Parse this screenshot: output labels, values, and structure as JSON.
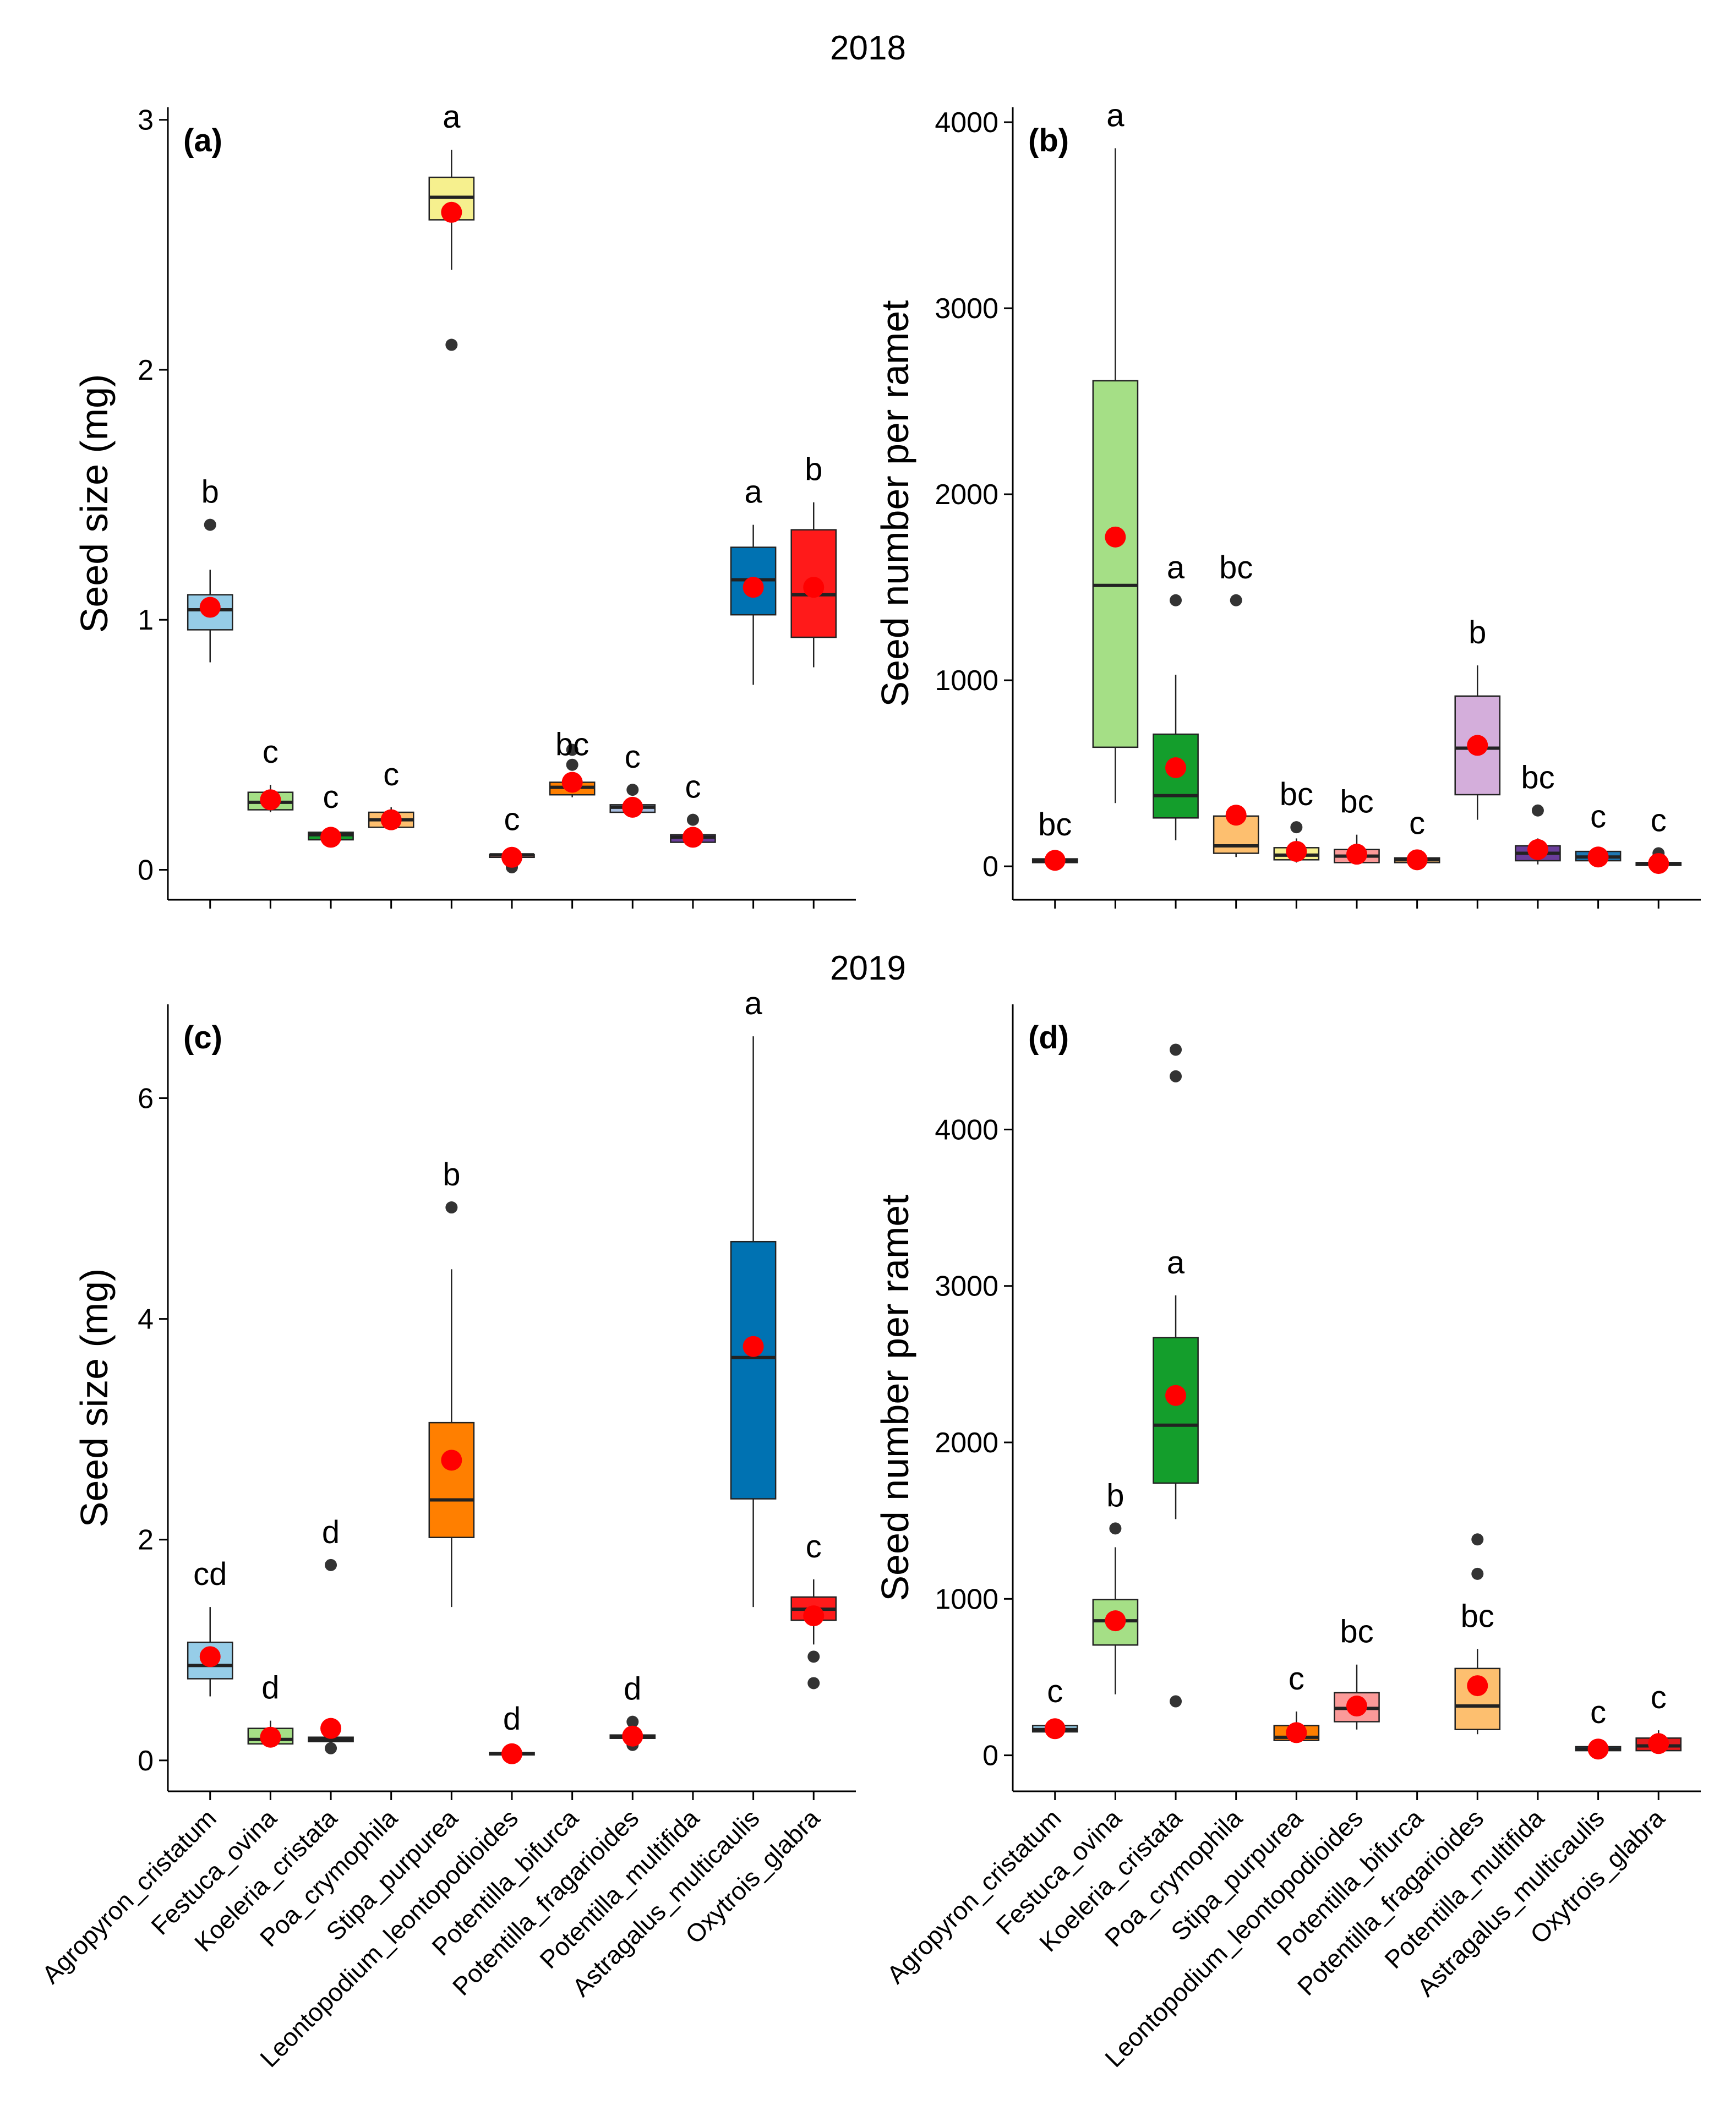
{
  "year_labels": [
    "2018",
    "2019"
  ],
  "species": [
    "Agropyron_cristatum",
    "Festuca_ovina",
    "Koeleria_cristata",
    "Poa_crymophila",
    "Stipa_purpurea",
    "Leontopodium_leontopodioides",
    "Potentilla_bifurca",
    "Potentilla_fragarioides",
    "Potentilla_multifida",
    "Astragalus_multicaulis",
    "Oxytrois_glabra"
  ],
  "colors": {
    "Agropyron_cristatum": "#96cde8",
    "Festuca_ovina": "#a5df86",
    "Koeleria_cristata": "#149e2c",
    "Poa_crymophila": "#fdbf6f",
    "Stipa_purpurea": "#ff7f00",
    "Leontopodium_leontopodioides": "#fb9a99",
    "Potentilla_bifurca": "#f6f08e",
    "Potentilla_fragarioides": "#fdbf6f",
    "Potentilla_multifida": "#6a3d9a",
    "Astragalus_multicaulis": "#1f78b4",
    "Oxytrois_glabra": "#e31a1c",
    "mean_point": "#ff0000",
    "outlier": "#333333"
  },
  "chart_data": [
    {
      "panel": "(a)",
      "year": "2018",
      "type": "box",
      "ylabel": "Seed size (mg)",
      "ylim": [
        -0.12,
        3.05
      ],
      "yticks": [
        0,
        1,
        2,
        3
      ],
      "show_x_labels": false,
      "groups": [
        {
          "species": "Agropyron_cristatum",
          "fill": "#96cde8",
          "min": 0.83,
          "q1": 0.96,
          "median": 1.04,
          "q3": 1.1,
          "max": 1.2,
          "mean": 1.05,
          "outliers": [
            1.38
          ],
          "letter": "b"
        },
        {
          "species": "Festuca_ovina",
          "fill": "#a5df86",
          "min": 0.23,
          "q1": 0.24,
          "median": 0.27,
          "q3": 0.31,
          "max": 0.34,
          "mean": 0.28,
          "outliers": [],
          "letter": "c"
        },
        {
          "species": "Koeleria_cristata",
          "fill": "#149e2c",
          "min": 0.12,
          "q1": 0.12,
          "median": 0.14,
          "q3": 0.15,
          "max": 0.16,
          "mean": 0.13,
          "outliers": [],
          "letter": "c"
        },
        {
          "species": "Poa_crymophila",
          "fill": "#fdbf6f",
          "min": 0.16,
          "q1": 0.17,
          "median": 0.2,
          "q3": 0.23,
          "max": 0.25,
          "mean": 0.2,
          "outliers": [],
          "letter": "c"
        },
        {
          "species": "Stipa_purpurea",
          "fill": "#f6f08e",
          "min": 2.4,
          "q1": 2.6,
          "median": 2.69,
          "q3": 2.77,
          "max": 2.88,
          "mean": 2.63,
          "outliers": [
            2.1
          ],
          "letter": "a"
        },
        {
          "species": "Leontopodium_leontopodioides",
          "fill": "#fb9a99",
          "min": 0.04,
          "q1": 0.05,
          "median": 0.06,
          "q3": 0.06,
          "max": 0.07,
          "mean": 0.05,
          "outliers": [
            0.01
          ],
          "letter": "c"
        },
        {
          "species": "Potentilla_bifurca",
          "fill": "#ff7f00",
          "min": 0.29,
          "q1": 0.3,
          "median": 0.33,
          "q3": 0.35,
          "max": 0.37,
          "mean": 0.35,
          "outliers": [
            0.42,
            0.48
          ],
          "letter": "bc"
        },
        {
          "species": "Potentilla_fragarioides",
          "fill": "#a8bde0",
          "min": 0.22,
          "q1": 0.23,
          "median": 0.25,
          "q3": 0.26,
          "max": 0.28,
          "mean": 0.25,
          "outliers": [
            0.32
          ],
          "letter": "c"
        },
        {
          "species": "Potentilla_multifida",
          "fill": "#6a3d9a",
          "min": 0.11,
          "q1": 0.11,
          "median": 0.13,
          "q3": 0.14,
          "max": 0.16,
          "mean": 0.13,
          "outliers": [
            0.2
          ],
          "letter": "c"
        },
        {
          "species": "Astragalus_multicaulis",
          "fill": "#0072b2",
          "min": 0.74,
          "q1": 1.02,
          "median": 1.16,
          "q3": 1.29,
          "max": 1.38,
          "mean": 1.13,
          "outliers": [],
          "letter": "a"
        },
        {
          "species": "Oxytrois_glabra",
          "fill": "#ff1a1a",
          "min": 0.81,
          "q1": 0.93,
          "median": 1.1,
          "q3": 1.36,
          "max": 1.47,
          "mean": 1.13,
          "outliers": [],
          "letter": "b"
        }
      ]
    },
    {
      "panel": "(b)",
      "year": "2018",
      "type": "box",
      "ylabel": "Seed number per ramet",
      "ylim": [
        -180,
        4080
      ],
      "yticks": [
        0,
        1000,
        2000,
        3000,
        4000
      ],
      "show_x_labels": false,
      "groups": [
        {
          "species": "Agropyron_cristatum",
          "fill": "#96cde8",
          "min": 15,
          "q1": 20,
          "median": 30,
          "q3": 40,
          "max": 48,
          "mean": 32,
          "outliers": [],
          "letter": "bc"
        },
        {
          "species": "Festuca_ovina",
          "fill": "#a5df86",
          "min": 340,
          "q1": 640,
          "median": 1510,
          "q3": 2610,
          "max": 3860,
          "mean": 1770,
          "outliers": [],
          "letter": "a"
        },
        {
          "species": "Koeleria_cristata",
          "fill": "#149e2c",
          "min": 140,
          "q1": 260,
          "median": 380,
          "q3": 710,
          "max": 1030,
          "mean": 530,
          "outliers": [
            1430
          ],
          "letter": "a"
        },
        {
          "species": "Poa_crymophila",
          "fill": "#fdbf6f",
          "min": 50,
          "q1": 70,
          "median": 110,
          "q3": 270,
          "max": 330,
          "mean": 275,
          "outliers": [
            1430
          ],
          "letter": "bc"
        },
        {
          "species": "Stipa_purpurea",
          "fill": "#f6f08e",
          "min": 20,
          "q1": 35,
          "median": 60,
          "q3": 100,
          "max": 150,
          "mean": 80,
          "outliers": [
            210
          ],
          "letter": "bc"
        },
        {
          "species": "Leontopodium_leontopodioides",
          "fill": "#fb9a99",
          "min": 10,
          "q1": 20,
          "median": 55,
          "q3": 90,
          "max": 170,
          "mean": 65,
          "outliers": [],
          "letter": "bc"
        },
        {
          "species": "Potentilla_bifurca",
          "fill": "#fdbf6f",
          "min": 10,
          "q1": 20,
          "median": 35,
          "q3": 45,
          "max": 55,
          "mean": 35,
          "outliers": [],
          "letter": "c"
        },
        {
          "species": "Potentilla_fragarioides",
          "fill": "#d4aedb",
          "min": 250,
          "q1": 385,
          "median": 635,
          "q3": 915,
          "max": 1080,
          "mean": 650,
          "outliers": [],
          "letter": "b"
        },
        {
          "species": "Potentilla_multifida",
          "fill": "#6a3d9a",
          "min": 10,
          "q1": 30,
          "median": 70,
          "q3": 110,
          "max": 150,
          "mean": 90,
          "outliers": [
            300
          ],
          "letter": "bc"
        },
        {
          "species": "Astragalus_multicaulis",
          "fill": "#1f78b4",
          "min": 20,
          "q1": 30,
          "median": 50,
          "q3": 80,
          "max": 90,
          "mean": 50,
          "outliers": [],
          "letter": "c"
        },
        {
          "species": "Oxytrois_glabra",
          "fill": "#e31a1c",
          "min": 0,
          "q1": 5,
          "median": 15,
          "q3": 20,
          "max": 30,
          "mean": 15,
          "outliers": [
            70
          ],
          "letter": "c"
        }
      ]
    },
    {
      "panel": "(c)",
      "year": "2019",
      "type": "box",
      "ylabel": "Seed size (mg)",
      "ylim": [
        -0.28,
        6.85
      ],
      "yticks": [
        0,
        2,
        4,
        6
      ],
      "show_x_labels": true,
      "groups": [
        {
          "species": "Agropyron_cristatum",
          "fill": "#96cde8",
          "min": 0.58,
          "q1": 0.74,
          "median": 0.86,
          "q3": 1.07,
          "max": 1.39,
          "mean": 0.94,
          "outliers": [],
          "letter": "cd"
        },
        {
          "species": "Festuca_ovina",
          "fill": "#a5df86",
          "min": 0.14,
          "q1": 0.15,
          "median": 0.19,
          "q3": 0.29,
          "max": 0.36,
          "mean": 0.21,
          "outliers": [],
          "letter": "d"
        },
        {
          "species": "Koeleria_cristata",
          "fill": "#149e2c",
          "min": 0.15,
          "q1": 0.17,
          "median": 0.19,
          "q3": 0.21,
          "max": 0.23,
          "mean": 0.29,
          "outliers": [
            1.77,
            0.11
          ],
          "letter": "d"
        },
        {
          "species": "Stipa_purpurea",
          "fill": "#ff7f00",
          "min": 1.39,
          "q1": 2.02,
          "median": 2.36,
          "q3": 3.06,
          "max": 4.45,
          "mean": 2.72,
          "outliers": [
            5.01
          ],
          "letter": "b"
        },
        {
          "species": "Leontopodium_leontopodioides",
          "fill": "#fb9a99",
          "min": 0.04,
          "q1": 0.05,
          "median": 0.06,
          "q3": 0.07,
          "max": 0.08,
          "mean": 0.06,
          "outliers": [],
          "letter": "d"
        },
        {
          "species": "Potentilla_fragarioides",
          "fill": "#a8bde0",
          "min": 0.18,
          "q1": 0.2,
          "median": 0.22,
          "q3": 0.23,
          "max": 0.26,
          "mean": 0.22,
          "outliers": [
            0.35,
            0.14
          ],
          "letter": "d"
        },
        {
          "species": "Astragalus_multicaulis",
          "fill": "#0072b2",
          "min": 1.39,
          "q1": 2.37,
          "median": 3.65,
          "q3": 4.7,
          "max": 6.56,
          "mean": 3.75,
          "outliers": [],
          "letter": "a"
        },
        {
          "species": "Oxytrois_glabra",
          "fill": "#ff1a1a",
          "min": 1.05,
          "q1": 1.27,
          "median": 1.37,
          "q3": 1.48,
          "max": 1.64,
          "mean": 1.31,
          "outliers": [
            0.94,
            0.7
          ],
          "letter": "c"
        }
      ]
    },
    {
      "panel": "(d)",
      "year": "2019",
      "type": "box",
      "ylabel": "Seed number per ramet",
      "ylim": [
        -230,
        4800
      ],
      "yticks": [
        0,
        1000,
        2000,
        3000,
        4000
      ],
      "show_x_labels": true,
      "groups": [
        {
          "species": "Agropyron_cristatum",
          "fill": "#96cde8",
          "min": 140,
          "q1": 150,
          "median": 165,
          "q3": 190,
          "max": 200,
          "mean": 170,
          "outliers": [],
          "letter": "c"
        },
        {
          "species": "Festuca_ovina",
          "fill": "#a5df86",
          "min": 390,
          "q1": 705,
          "median": 860,
          "q3": 995,
          "max": 1330,
          "mean": 860,
          "outliers": [
            1450
          ],
          "letter": "b"
        },
        {
          "species": "Koeleria_cristata",
          "fill": "#149e2c",
          "min": 1510,
          "q1": 1740,
          "median": 2110,
          "q3": 2670,
          "max": 2940,
          "mean": 2300,
          "outliers": [
            4510,
            4340,
            345
          ],
          "letter": "a"
        },
        {
          "species": "Stipa_purpurea",
          "fill": "#ff7f00",
          "min": 80,
          "q1": 95,
          "median": 115,
          "q3": 190,
          "max": 280,
          "mean": 145,
          "outliers": [],
          "letter": "c"
        },
        {
          "species": "Leontopodium_leontopodioides",
          "fill": "#fb9a99",
          "min": 165,
          "q1": 215,
          "median": 300,
          "q3": 400,
          "max": 580,
          "mean": 315,
          "outliers": [],
          "letter": "bc"
        },
        {
          "species": "Potentilla_fragarioides",
          "fill": "#fdbf6f",
          "min": 135,
          "q1": 165,
          "median": 315,
          "q3": 555,
          "max": 680,
          "mean": 445,
          "outliers": [
            1380,
            1160
          ],
          "letter": "bc"
        },
        {
          "species": "Astragalus_multicaulis",
          "fill": "#1f78b4",
          "min": 20,
          "q1": 30,
          "median": 40,
          "q3": 55,
          "max": 65,
          "mean": 40,
          "outliers": [],
          "letter": "c"
        },
        {
          "species": "Oxytrois_glabra",
          "fill": "#e31a1c",
          "min": 15,
          "q1": 30,
          "median": 60,
          "q3": 110,
          "max": 160,
          "mean": 75,
          "outliers": [],
          "letter": "c"
        }
      ]
    }
  ]
}
